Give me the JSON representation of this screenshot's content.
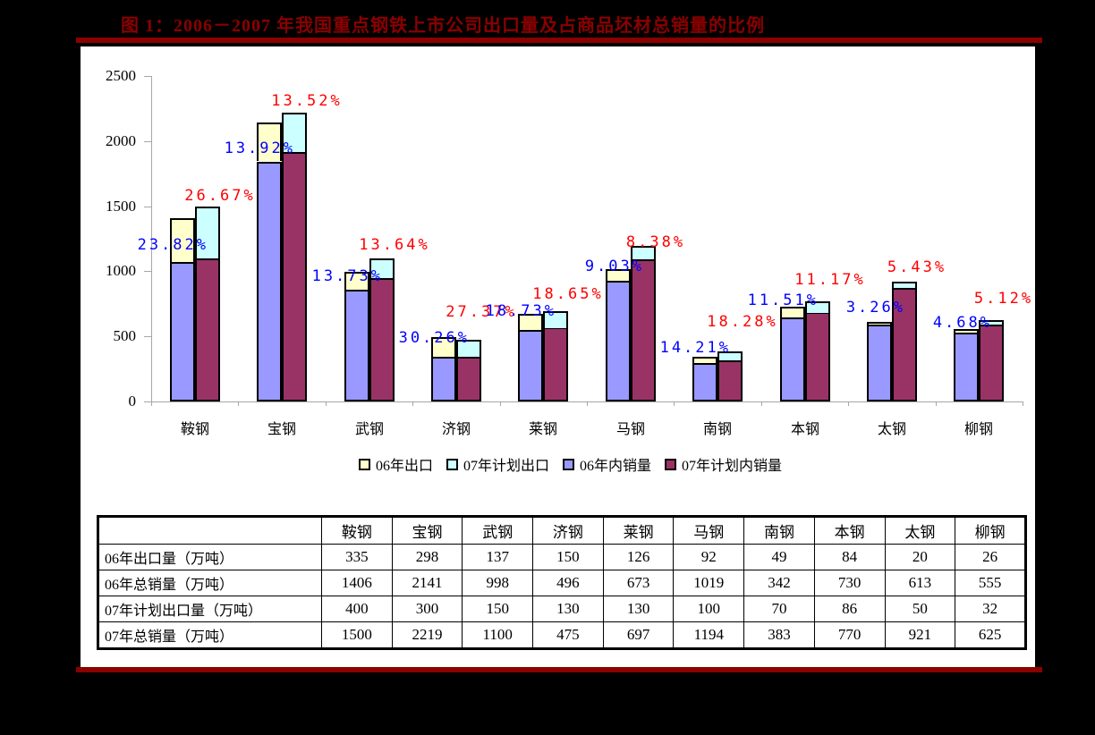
{
  "title": "图 1：2006－2007 年我国重点钢铁上市公司出口量及占商品坯材总销量的比例",
  "colors": {
    "page_background": "#000000",
    "paper": "#ffffff",
    "accent_dark_red": "#8B0000",
    "series_06_export": "#FFFFCC",
    "series_07_plan_export": "#CCFFFF",
    "series_06_domestic": "#9999FF",
    "series_07_plan_domestic": "#993366",
    "label_blue": "#0000FF",
    "label_red": "#FF0000",
    "axis_gray": "#a6a6a6"
  },
  "chart_data": {
    "type": "bar",
    "subtype": "grouped-stacked",
    "title": "图 1：2006－2007 年我国重点钢铁上市公司出口量及占商品坯材总销量的比例",
    "categories": [
      "鞍钢",
      "宝钢",
      "武钢",
      "济钢",
      "莱钢",
      "马钢",
      "南钢",
      "本钢",
      "太钢",
      "柳钢"
    ],
    "ylim": [
      0,
      2500
    ],
    "yticks": [
      0,
      500,
      1000,
      1500,
      2000,
      2500
    ],
    "grid": false,
    "legend_position": "bottom",
    "legend": [
      "06年出口",
      "07年计划出口",
      "06年内销量",
      "07年计划内销量"
    ],
    "stacks": [
      {
        "name": "2006",
        "totals": [
          1406,
          2141,
          998,
          496,
          673,
          1019,
          342,
          730,
          613,
          555
        ],
        "segments": [
          {
            "series": "06年内销量",
            "color": "#9999FF",
            "values": [
              1071,
              1843,
              861,
              346,
              547,
              927,
              293,
              646,
              593,
              529
            ]
          },
          {
            "series": "06年出口",
            "color": "#FFFFCC",
            "values": [
              335,
              298,
              137,
              150,
              126,
              92,
              49,
              84,
              20,
              26
            ]
          }
        ]
      },
      {
        "name": "2007计划",
        "totals": [
          1500,
          2219,
          1100,
          475,
          697,
          1194,
          383,
          770,
          921,
          625
        ],
        "segments": [
          {
            "series": "07年计划内销量",
            "color": "#993366",
            "values": [
              1100,
              1919,
              950,
              345,
              567,
              1094,
              313,
              684,
              871,
              593
            ]
          },
          {
            "series": "07年计划出口",
            "color": "#CCFFFF",
            "values": [
              400,
              300,
              150,
              130,
              130,
              100,
              70,
              86,
              50,
              32
            ]
          }
        ]
      }
    ],
    "point_labels": {
      "pct_06_blue": [
        "23.82%",
        "13.92%",
        "13.73%",
        "30.26%",
        "18.73%",
        "9.03%",
        "14.21%",
        "11.51%",
        "3.26%",
        "4.68%"
      ],
      "pct_07_red": [
        "26.67%",
        "13.52%",
        "13.64%",
        "27.37%",
        "18.65%",
        "8.38%",
        "18.28%",
        "11.17%",
        "5.43%",
        "5.12%"
      ]
    }
  },
  "legend_items": [
    {
      "label": "06年出口",
      "color": "#FFFFCC"
    },
    {
      "label": "07年计划出口",
      "color": "#CCFFFF"
    },
    {
      "label": "06年内销量",
      "color": "#9999FF"
    },
    {
      "label": "07年计划内销量",
      "color": "#993366"
    }
  ],
  "table": {
    "corner": "",
    "columns": [
      "鞍钢",
      "宝钢",
      "武钢",
      "济钢",
      "莱钢",
      "马钢",
      "南钢",
      "本钢",
      "太钢",
      "柳钢"
    ],
    "rows": [
      {
        "label": "06年出口量（万吨）",
        "values": [
          335,
          298,
          137,
          150,
          126,
          92,
          49,
          84,
          20,
          26
        ]
      },
      {
        "label": "06年总销量（万吨）",
        "values": [
          1406,
          2141,
          998,
          496,
          673,
          1019,
          342,
          730,
          613,
          555
        ]
      },
      {
        "label": "07年计划出口量（万吨）",
        "values": [
          400,
          300,
          150,
          130,
          130,
          100,
          70,
          86,
          50,
          32
        ]
      },
      {
        "label": "07年总销量（万吨）",
        "values": [
          1500,
          2219,
          1100,
          475,
          697,
          1194,
          383,
          770,
          921,
          625
        ]
      }
    ]
  }
}
